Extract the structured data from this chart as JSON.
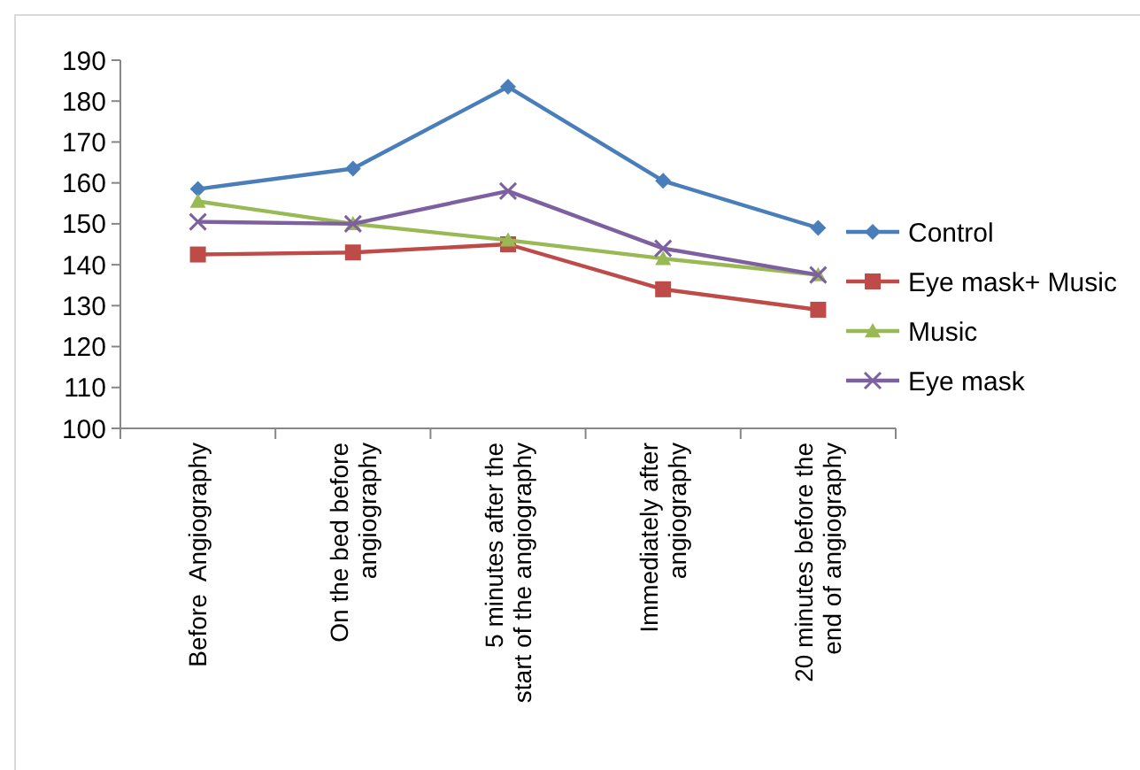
{
  "chart_data": {
    "type": "line",
    "categories": [
      "Before  Angiography",
      "On the bed before\nangiography",
      "5 minutes after the\nstart of the angiography",
      "Immediately after\nangiography",
      "20 minutes before the\nend of angiography"
    ],
    "series": [
      {
        "name": "Control",
        "color": "#4a7ebb",
        "marker": "diamond",
        "values": [
          158.5,
          163.5,
          183.5,
          160.5,
          149
        ]
      },
      {
        "name": "Eye mask+ Music",
        "color": "#be4b48",
        "marker": "square",
        "values": [
          142.5,
          143,
          145,
          134,
          129
        ]
      },
      {
        "name": "Music",
        "color": "#98b954",
        "marker": "triangle",
        "values": [
          155.5,
          150,
          146,
          141.5,
          137.5
        ]
      },
      {
        "name": "Eye mask",
        "color": "#7d60a0",
        "marker": "cross",
        "values": [
          150.5,
          150,
          158,
          144,
          137.5
        ]
      }
    ],
    "ylim": [
      100,
      190
    ],
    "yticks": [
      100,
      110,
      120,
      130,
      140,
      150,
      160,
      170,
      180,
      190
    ],
    "grid": false,
    "legend": "right",
    "line_style": "solid"
  }
}
